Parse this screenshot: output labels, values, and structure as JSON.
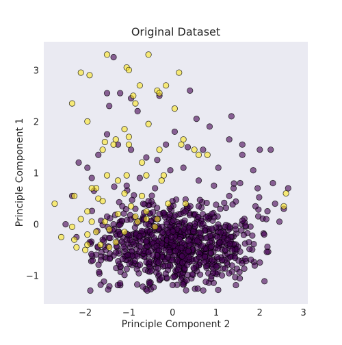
{
  "chart_data": {
    "type": "scatter",
    "title": "Original Dataset",
    "xlabel": "Principle Component 2",
    "ylabel": "Principle Component 1",
    "xlim": [
      -2.95,
      3.1
    ],
    "ylim": [
      -1.55,
      3.55
    ],
    "xticks": [
      -2,
      -1,
      0,
      1,
      2,
      3
    ],
    "yticks": [
      -1,
      0,
      1,
      2,
      3
    ],
    "xtick_labels": [
      "−2",
      "−1",
      "0",
      "1",
      "2",
      "3"
    ],
    "ytick_labels": [
      "−1",
      "0",
      "1",
      "2",
      "3"
    ],
    "grid": false,
    "legend": "none",
    "marker_alpha": 0.6,
    "colors": {
      "plot_background": "#eaeaf2",
      "class_0": "#440154",
      "class_1": "#fde725",
      "edge": "#000000"
    },
    "series": [
      {
        "class": 0,
        "color": "#440154",
        "approx_count": 880,
        "points": [
          [
            -1.35,
            3.25
          ],
          [
            -1.5,
            2.55
          ],
          [
            -1.45,
            2.3
          ],
          [
            -1.2,
            2.55
          ],
          [
            -0.95,
            2.45
          ],
          [
            -0.8,
            2.2
          ],
          [
            -0.3,
            2.5
          ],
          [
            0.4,
            2.6
          ],
          [
            0.55,
            2.05
          ],
          [
            0.85,
            1.9
          ],
          [
            1.35,
            2.1
          ],
          [
            1.6,
            1.55
          ],
          [
            2.0,
            1.45
          ],
          [
            2.25,
            1.45
          ],
          [
            2.65,
            0.7
          ],
          [
            2.3,
            0.8
          ],
          [
            1.95,
            0.7
          ],
          [
            1.85,
            1.05
          ],
          [
            2.35,
            0.4
          ],
          [
            1.6,
            1.35
          ],
          [
            1.3,
            1.65
          ],
          [
            1.05,
            1.1
          ],
          [
            0.7,
            1.45
          ],
          [
            0.35,
            1.5
          ],
          [
            0.05,
            1.8
          ],
          [
            -0.15,
            1.55
          ],
          [
            -0.35,
            1.25
          ],
          [
            -0.6,
            1.3
          ],
          [
            -0.95,
            1.45
          ],
          [
            -1.25,
            1.55
          ],
          [
            -1.5,
            1.75
          ],
          [
            -1.7,
            1.35
          ],
          [
            -1.95,
            1.1
          ],
          [
            -2.15,
            1.2
          ],
          [
            -1.8,
            0.65
          ],
          [
            -2.3,
            0.55
          ],
          [
            -2.45,
            0.0
          ],
          [
            -2.2,
            -0.25
          ],
          [
            -1.9,
            -0.35
          ],
          [
            -1.5,
            0.15
          ],
          [
            -1.85,
            0.9
          ],
          [
            -1.05,
            0.75
          ],
          [
            -0.75,
            0.9
          ],
          [
            -0.4,
            0.7
          ],
          [
            -0.05,
            1.05
          ],
          [
            0.25,
            1.1
          ],
          [
            0.6,
            0.85
          ],
          [
            0.95,
            0.75
          ],
          [
            1.3,
            0.55
          ],
          [
            1.55,
            0.8
          ],
          [
            1.9,
            0.35
          ],
          [
            2.15,
            0.1
          ],
          [
            2.45,
            0.05
          ],
          [
            2.55,
            0.3
          ],
          [
            2.1,
            -0.2
          ],
          [
            1.75,
            -0.35
          ],
          [
            1.45,
            -0.1
          ],
          [
            1.2,
            -0.05
          ],
          [
            0.9,
            0.2
          ],
          [
            0.6,
            0.35
          ],
          [
            0.3,
            0.25
          ],
          [
            0.0,
            0.45
          ],
          [
            -0.3,
            0.2
          ],
          [
            -0.55,
            0.45
          ],
          [
            -0.85,
            0.3
          ],
          [
            -1.15,
            0.35
          ],
          [
            -1.35,
            0.0
          ],
          [
            -1.6,
            -0.3
          ],
          [
            -1.3,
            -0.55
          ],
          [
            -1.05,
            -0.3
          ]
        ],
        "dense_region": {
          "x_range": [
            -1.6,
            1.9
          ],
          "y_range": [
            -1.3,
            0.6
          ],
          "center": [
            0.1,
            -0.55
          ]
        }
      },
      {
        "class": 1,
        "color": "#fde725",
        "approx_count": 85,
        "points": [
          [
            -1.5,
            3.3
          ],
          [
            -0.55,
            3.3
          ],
          [
            -1.05,
            3.05
          ],
          [
            -2.1,
            2.95
          ],
          [
            -1.9,
            2.9
          ],
          [
            0.15,
            2.95
          ],
          [
            -1.0,
            3.0
          ],
          [
            -0.75,
            2.7
          ],
          [
            -0.35,
            2.6
          ],
          [
            -0.15,
            2.7
          ],
          [
            -0.3,
            2.55
          ],
          [
            -0.85,
            2.35
          ],
          [
            -2.3,
            2.35
          ],
          [
            -0.9,
            2.5
          ],
          [
            -1.95,
            2.0
          ],
          [
            -0.55,
            1.95
          ],
          [
            -1.1,
            1.85
          ],
          [
            -1.0,
            1.7
          ],
          [
            -1.3,
            1.65
          ],
          [
            -1.55,
            1.6
          ],
          [
            -1.35,
            1.55
          ],
          [
            -1.0,
            1.55
          ],
          [
            -1.6,
            1.45
          ],
          [
            0.05,
            2.25
          ],
          [
            -0.3,
            1.45
          ],
          [
            0.5,
            1.45
          ],
          [
            0.6,
            1.35
          ],
          [
            0.8,
            1.35
          ],
          [
            0.2,
            1.55
          ],
          [
            0.25,
            1.65
          ],
          [
            -0.7,
            1.2
          ],
          [
            -0.6,
            0.95
          ],
          [
            -0.2,
            0.95
          ],
          [
            -0.25,
            0.85
          ],
          [
            -1.05,
            0.95
          ],
          [
            -1.5,
            0.95
          ],
          [
            -1.25,
            0.85
          ],
          [
            -1.75,
            0.7
          ],
          [
            -1.85,
            0.7
          ],
          [
            -2.25,
            0.55
          ],
          [
            -2.7,
            0.4
          ],
          [
            -1.7,
            0.5
          ],
          [
            -1.6,
            0.45
          ],
          [
            -1.1,
            0.6
          ],
          [
            -0.7,
            0.55
          ],
          [
            -0.6,
            0.25
          ],
          [
            -0.95,
            0.35
          ],
          [
            -1.25,
            0.2
          ],
          [
            -1.55,
            0.05
          ],
          [
            -1.95,
            0.25
          ],
          [
            -2.1,
            0.1
          ],
          [
            -1.85,
            0.05
          ],
          [
            -2.3,
            -0.05
          ],
          [
            -1.95,
            -0.2
          ],
          [
            -2.55,
            -0.25
          ],
          [
            -2.25,
            -0.3
          ],
          [
            -1.75,
            -0.15
          ],
          [
            -1.45,
            -0.1
          ],
          [
            -1.65,
            -0.4
          ],
          [
            -1.95,
            -0.4
          ],
          [
            -1.3,
            -0.35
          ],
          [
            -1.1,
            -0.15
          ],
          [
            -0.8,
            0.05
          ],
          [
            -0.6,
            0.1
          ],
          [
            -0.4,
            -0.05
          ],
          [
            -0.85,
            0.15
          ],
          [
            -0.35,
            0.1
          ],
          [
            -2.0,
            -0.5
          ],
          [
            -2.2,
            -0.45
          ],
          [
            -1.45,
            -0.45
          ],
          [
            -0.1,
            0.4
          ],
          [
            0.3,
            0.4
          ],
          [
            2.6,
            0.6
          ],
          [
            2.55,
            0.35
          ]
        ]
      }
    ]
  }
}
